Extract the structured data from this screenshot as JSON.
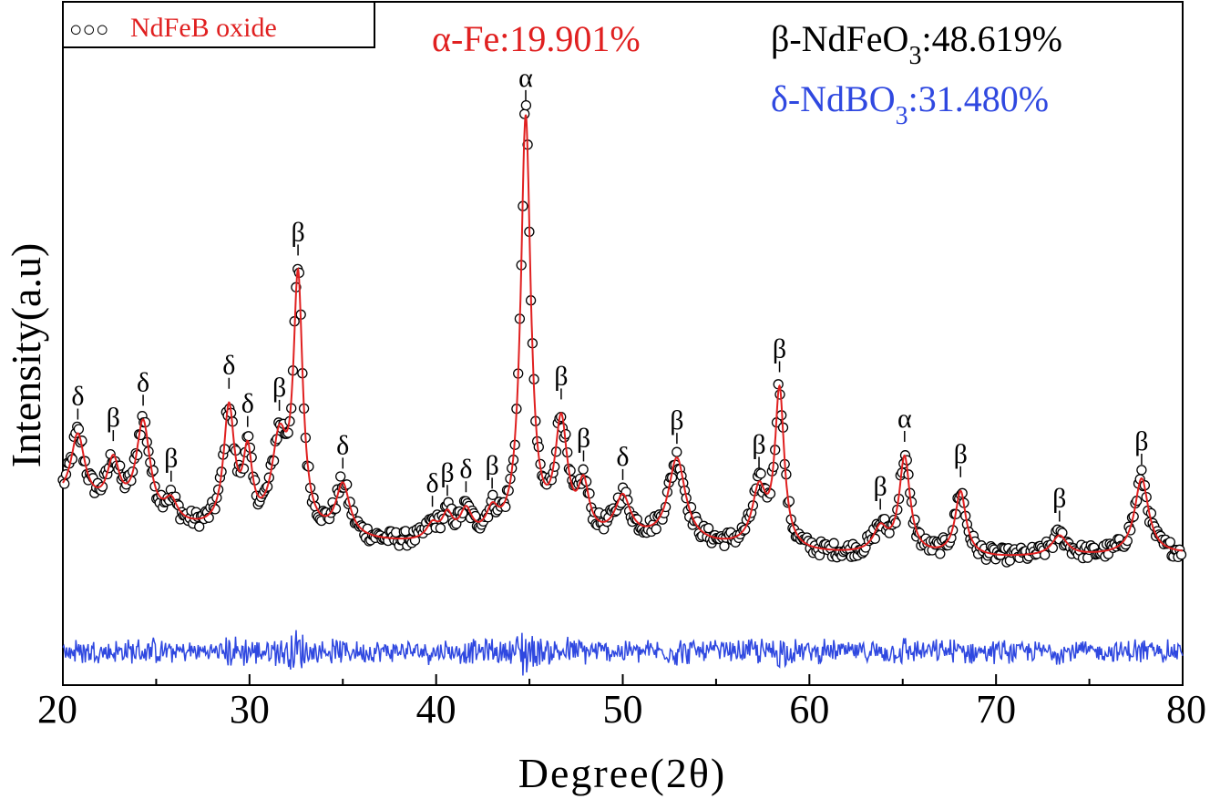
{
  "colors": {
    "observed": "#000000",
    "calculated": "#e02020",
    "difference": "#2f48e0",
    "alpha_text": "#e02020",
    "beta_text": "#000000",
    "delta_text": "#2f48e0"
  },
  "chart_data": {
    "type": "line",
    "xlabel": "Degree(2θ)",
    "ylabel": "Intensity(a.u)",
    "xlim": [
      20,
      80
    ],
    "ylim": [
      0,
      1.0
    ],
    "x_ticks": [
      20,
      30,
      40,
      50,
      60,
      70,
      80
    ],
    "legend": {
      "placement": "top-left",
      "marker": "○○○",
      "label": "NdFeB oxide"
    },
    "phase_fractions": [
      {
        "phase": "α-Fe",
        "prefix": "α-Fe:",
        "sub": "",
        "value": "19.901%"
      },
      {
        "phase": "β-NdFeO3",
        "prefix": "β-NdFeO",
        "sub": "3",
        "value": ":48.619%"
      },
      {
        "phase": "δ-NdBO3",
        "prefix": "δ-NdBO",
        "sub": "3",
        "value": ":31.480%"
      }
    ],
    "background_points": [
      [
        20,
        0.27
      ],
      [
        25,
        0.21
      ],
      [
        30,
        0.18
      ],
      [
        40,
        0.16
      ],
      [
        50,
        0.17
      ],
      [
        60,
        0.14
      ],
      [
        70,
        0.13
      ],
      [
        80,
        0.14
      ]
    ],
    "peaks": [
      {
        "x": 20.8,
        "h": 0.17,
        "w": 0.45,
        "label": "δ"
      },
      {
        "x": 22.7,
        "h": 0.12,
        "w": 0.4,
        "label": "β"
      },
      {
        "x": 24.3,
        "h": 0.24,
        "w": 0.45,
        "label": "δ"
      },
      {
        "x": 25.8,
        "h": 0.05,
        "w": 0.4,
        "label": "β"
      },
      {
        "x": 28.9,
        "h": 0.3,
        "w": 0.35,
        "label": "δ"
      },
      {
        "x": 29.9,
        "h": 0.18,
        "w": 0.3,
        "label": "δ"
      },
      {
        "x": 31.6,
        "h": 0.22,
        "w": 0.5,
        "label": "β"
      },
      {
        "x": 32.6,
        "h": 0.62,
        "w": 0.3,
        "label": "β"
      },
      {
        "x": 35.0,
        "h": 0.13,
        "w": 0.45,
        "label": "δ"
      },
      {
        "x": 39.8,
        "h": 0.04,
        "w": 0.4,
        "label": "δ"
      },
      {
        "x": 40.6,
        "h": 0.06,
        "w": 0.35,
        "label": "β"
      },
      {
        "x": 41.6,
        "h": 0.07,
        "w": 0.4,
        "label": "δ"
      },
      {
        "x": 43.0,
        "h": 0.06,
        "w": 0.4,
        "label": "β"
      },
      {
        "x": 44.8,
        "h": 1.05,
        "w": 0.32,
        "label": "α"
      },
      {
        "x": 46.7,
        "h": 0.28,
        "w": 0.4,
        "label": "β"
      },
      {
        "x": 47.9,
        "h": 0.12,
        "w": 0.35,
        "label": "β"
      },
      {
        "x": 50.0,
        "h": 0.1,
        "w": 0.5,
        "label": "δ"
      },
      {
        "x": 52.9,
        "h": 0.21,
        "w": 0.55,
        "label": "β"
      },
      {
        "x": 57.3,
        "h": 0.14,
        "w": 0.45,
        "label": "β"
      },
      {
        "x": 58.4,
        "h": 0.39,
        "w": 0.3,
        "label": "β"
      },
      {
        "x": 63.8,
        "h": 0.06,
        "w": 0.45,
        "label": "β"
      },
      {
        "x": 65.1,
        "h": 0.24,
        "w": 0.35,
        "label": "α"
      },
      {
        "x": 68.1,
        "h": 0.16,
        "w": 0.35,
        "label": "β"
      },
      {
        "x": 73.4,
        "h": 0.05,
        "w": 0.5,
        "label": "β"
      },
      {
        "x": 77.8,
        "h": 0.19,
        "w": 0.45,
        "label": "β"
      }
    ]
  }
}
